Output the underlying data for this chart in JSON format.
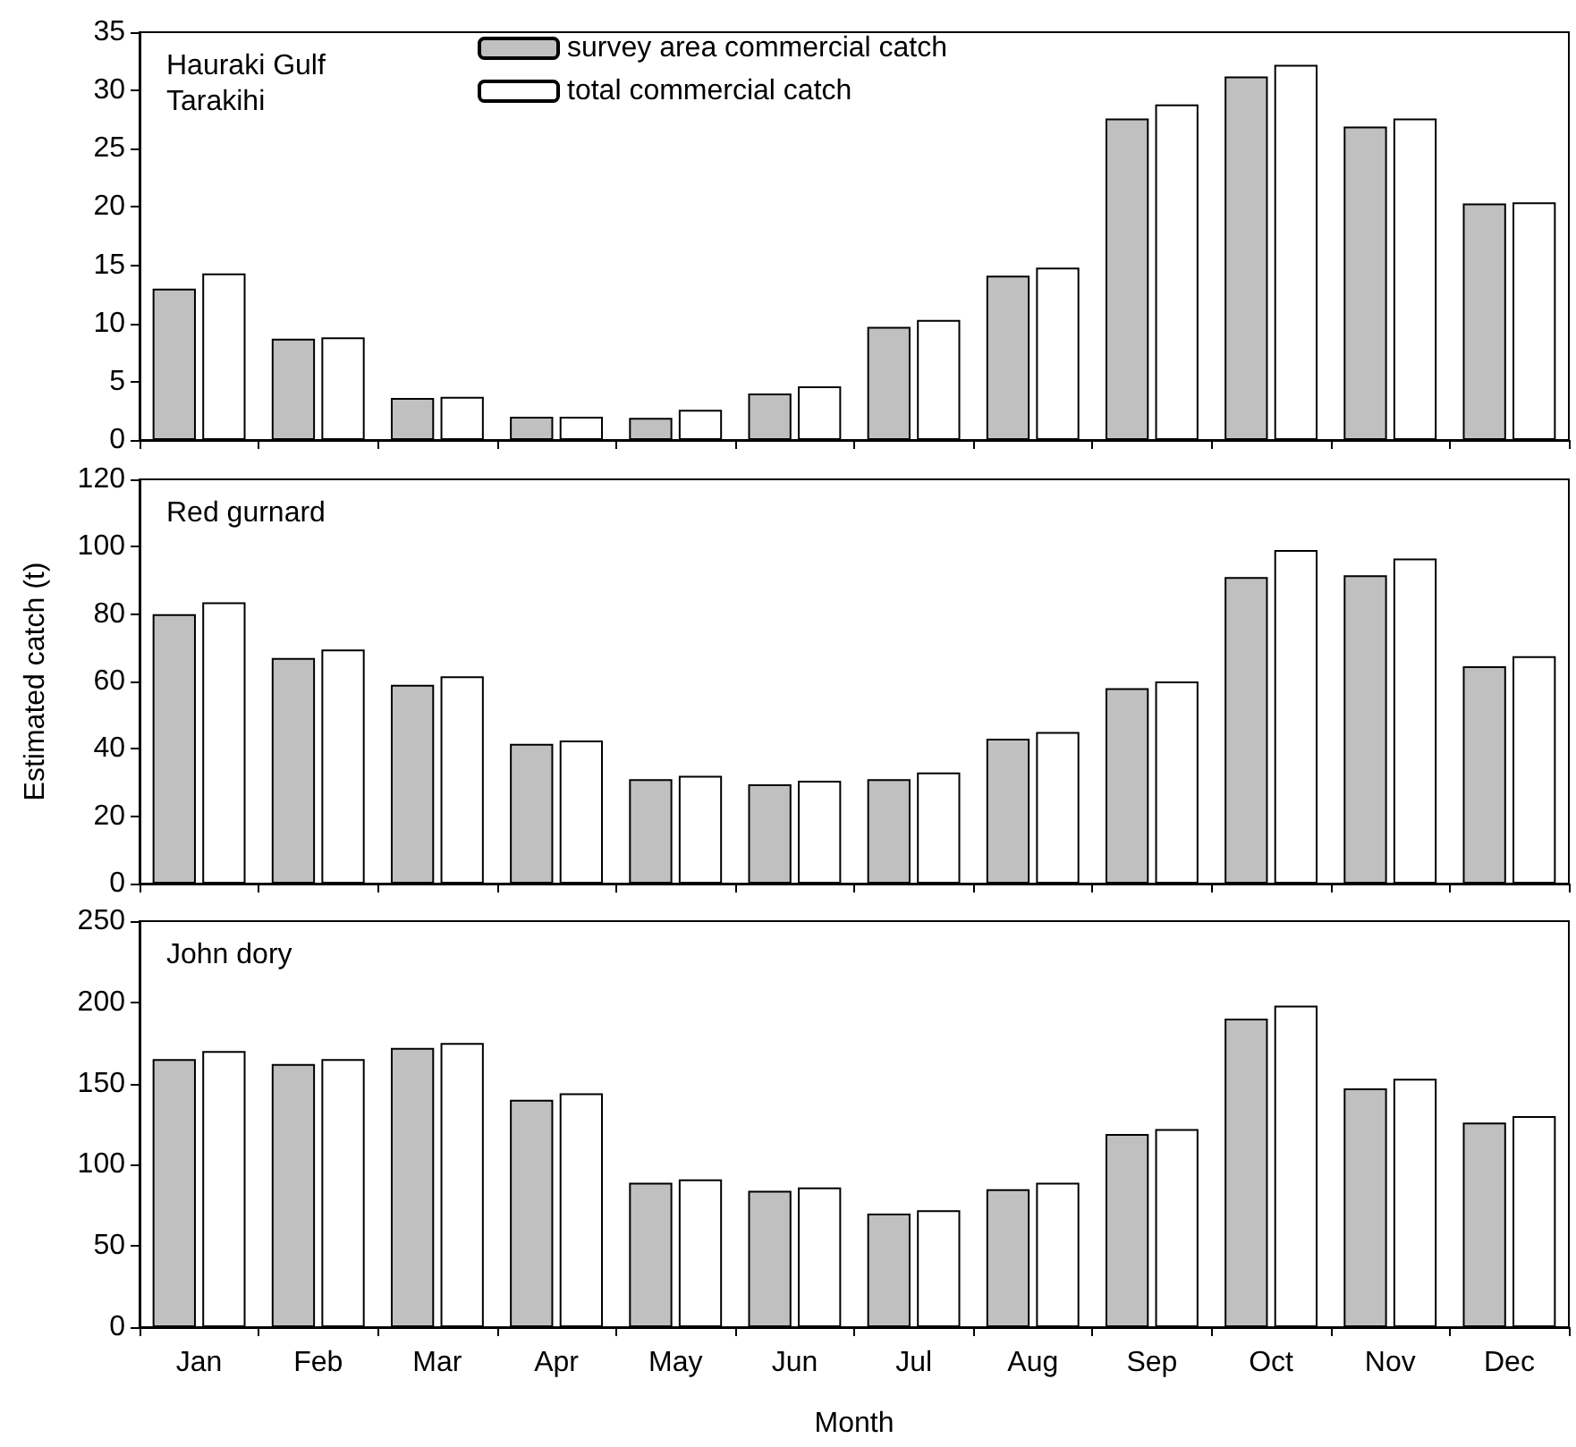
{
  "chart_data": [
    {
      "type": "bar",
      "title": "Hauraki Gulf",
      "subtitle": "Tarakihi",
      "categories": [
        null,
        null,
        null,
        null,
        null,
        null,
        null,
        null,
        null,
        null,
        null,
        null
      ],
      "series": [
        {
          "name": "survey area commercial catch",
          "color": "#c0c0c0",
          "values": [
            13.0,
            8.7,
            3.6,
            2.0,
            1.9,
            4.0,
            9.7,
            14.1,
            27.6,
            31.2,
            26.9,
            20.3
          ]
        },
        {
          "name": "total commercial catch",
          "color": "#ffffff",
          "values": [
            14.3,
            8.8,
            3.7,
            2.0,
            2.6,
            4.6,
            10.3,
            14.8,
            28.8,
            32.2,
            27.6,
            20.4
          ]
        }
      ],
      "ylim": [
        0,
        35
      ],
      "yticks": [
        0,
        5,
        10,
        15,
        20,
        25,
        30,
        35
      ],
      "tick_labels": "y",
      "grid": false,
      "legend": "top"
    },
    {
      "type": "bar",
      "title": "Red gurnard",
      "ylabel": "Estimated catch (t)",
      "categories": [
        null,
        null,
        null,
        null,
        null,
        null,
        null,
        null,
        null,
        null,
        null,
        null
      ],
      "series": [
        {
          "color": "#c0c0c0",
          "values": [
            80,
            67,
            59,
            41.5,
            31,
            29.5,
            31,
            43,
            58,
            91,
            91.5,
            64.5
          ]
        },
        {
          "color": "#ffffff",
          "values": [
            83.5,
            69.5,
            61.5,
            42.5,
            32,
            30.5,
            33,
            45,
            60,
            99,
            96.5,
            67.5
          ]
        }
      ],
      "ylim": [
        0,
        120
      ],
      "yticks": [
        0,
        20,
        40,
        60,
        80,
        100,
        120
      ],
      "tick_labels": "y",
      "grid": false
    },
    {
      "type": "bar",
      "title": "John dory",
      "xlabel": "Month",
      "categories": [
        "Jan",
        "Feb",
        "Mar",
        "Apr",
        "May",
        "Jun",
        "Jul",
        "Aug",
        "Sep",
        "Oct",
        "Nov",
        "Dec"
      ],
      "series": [
        {
          "color": "#c0c0c0",
          "values": [
            165,
            162,
            172,
            140,
            89,
            84,
            70,
            85,
            119,
            190,
            147,
            126
          ]
        },
        {
          "color": "#ffffff",
          "values": [
            170,
            165,
            175,
            144,
            91,
            86,
            72,
            89,
            122,
            198,
            153,
            130
          ]
        }
      ],
      "ylim": [
        0,
        250
      ],
      "yticks": [
        0,
        50,
        100,
        150,
        200,
        250
      ],
      "grid": false
    }
  ]
}
